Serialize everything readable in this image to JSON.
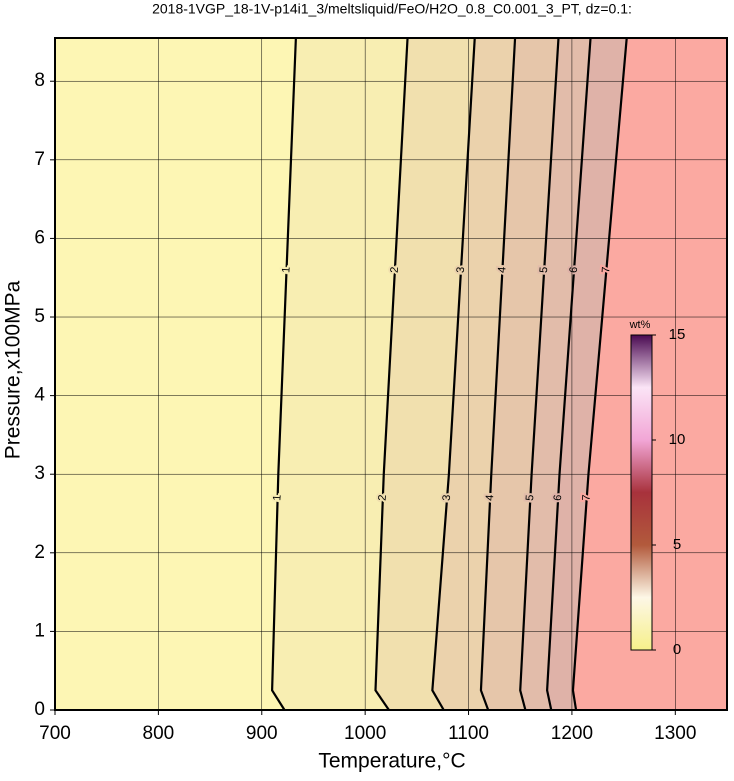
{
  "chart_data": {
    "type": "contour",
    "title": "2018-1VGP_18-1V-p14i1_3/meltsliquid/FeO/H2O_0.8_C0.001_3_PT, dz=0.1:",
    "x_label": "Temperature,°C",
    "y_label": "Pressure,x100MPa",
    "xlim": [
      700,
      1350
    ],
    "xticks": [
      700,
      800,
      900,
      1000,
      1100,
      1200,
      1300
    ],
    "ylim": [
      0,
      8.55
    ],
    "yticks": [
      0,
      1,
      2,
      3,
      4,
      5,
      6,
      7,
      8
    ],
    "grid": true,
    "background": "#fdf6b4",
    "contours": [
      {
        "level": 1,
        "fill": "#f8eeb2",
        "T": [
          922,
          910,
          916,
          933
        ],
        "P": [
          0,
          0.25,
          3,
          8.55
        ]
      },
      {
        "level": 2,
        "fill": "#f1e0ae",
        "T": [
          1023,
          1010,
          1018,
          1041
        ],
        "P": [
          0,
          0.25,
          3,
          8.55
        ]
      },
      {
        "level": 3,
        "fill": "#ebd2ac",
        "T": [
          1076,
          1065,
          1081,
          1106
        ],
        "P": [
          0,
          0.25,
          3,
          8.55
        ]
      },
      {
        "level": 4,
        "fill": "#e6c6aa",
        "T": [
          1119,
          1112,
          1122,
          1145
        ],
        "P": [
          0,
          0.25,
          3,
          8.55
        ]
      },
      {
        "level": 5,
        "fill": "#e2bcaa",
        "T": [
          1155,
          1150,
          1161,
          1187
        ],
        "P": [
          0,
          0.25,
          3,
          8.55
        ]
      },
      {
        "level": 6,
        "fill": "#dfb2a8",
        "T": [
          1180,
          1176,
          1188,
          1218
        ],
        "P": [
          0,
          0.25,
          3,
          8.55
        ]
      },
      {
        "level": 7,
        "fill": "#fba9a1",
        "T": [
          1204,
          1201,
          1216,
          1253
        ],
        "P": [
          0,
          0.25,
          3,
          8.55
        ]
      }
    ],
    "label_pressures": [
      5.6,
      2.7
    ],
    "colorbar": {
      "label": "wt%",
      "lim": [
        0,
        15
      ],
      "ticks": [
        0,
        5,
        10,
        15
      ],
      "colors": [
        "#f6f08a",
        "#fdf7e6",
        "#b25a3c",
        "#a8323c",
        "#f2a6d6",
        "#fbe4f6",
        "#4a0a52"
      ]
    }
  }
}
